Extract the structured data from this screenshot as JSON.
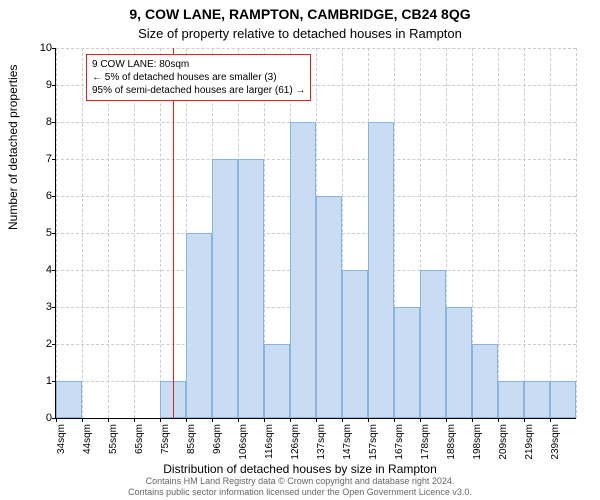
{
  "title_line1": "9, COW LANE, RAMPTON, CAMBRIDGE, CB24 8QG",
  "title_line2": "Size of property relative to detached houses in Rampton",
  "ylabel": "Number of detached properties",
  "xlabel": "Distribution of detached houses by size in Rampton",
  "chart": {
    "type": "histogram-bar",
    "ylim": [
      0,
      10
    ],
    "ytick_step": 1,
    "bar_fill": "#c9ddf2",
    "bar_border": "#8ab4e0",
    "grid_color": "#cccccc",
    "background_color": "#ffffff",
    "reference_line_color": "#e02020",
    "reference_value_label": "80sqm",
    "x_labels": [
      "34sqm",
      "44sqm",
      "55sqm",
      "65sqm",
      "75sqm",
      "85sqm",
      "96sqm",
      "106sqm",
      "116sqm",
      "126sqm",
      "137sqm",
      "147sqm",
      "157sqm",
      "167sqm",
      "178sqm",
      "188sqm",
      "198sqm",
      "209sqm",
      "219sqm",
      "239sqm"
    ],
    "values": [
      1,
      0,
      0,
      0,
      1,
      5,
      7,
      7,
      2,
      8,
      6,
      4,
      8,
      3,
      4,
      3,
      2,
      1,
      1,
      1
    ]
  },
  "annotation": {
    "line1": "9 COW LANE: 80sqm",
    "line2": "← 5% of detached houses are smaller (3)",
    "line3": "95% of semi-detached houses are larger (61) →"
  },
  "attribution_line1": "Contains HM Land Registry data © Crown copyright and database right 2024.",
  "attribution_line2": "Contains public sector information licensed under the Open Government Licence v3.0."
}
